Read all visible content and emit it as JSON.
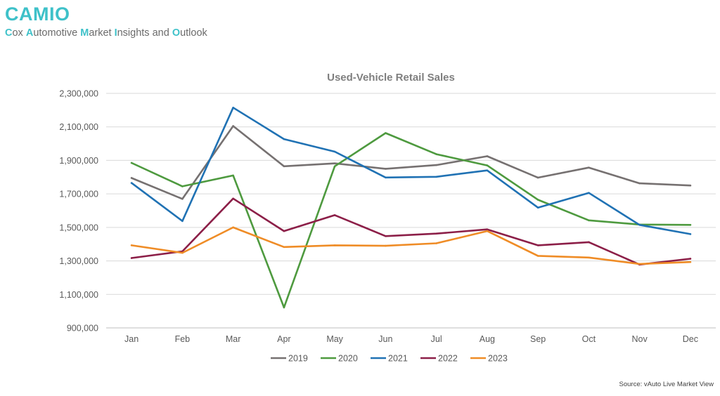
{
  "brand": {
    "title": "CAMIO",
    "subtitle_parts": [
      {
        "text": "C",
        "highlight": true
      },
      {
        "text": "ox ",
        "highlight": false
      },
      {
        "text": "A",
        "highlight": true
      },
      {
        "text": "utomotive ",
        "highlight": false
      },
      {
        "text": "M",
        "highlight": true
      },
      {
        "text": "arket ",
        "highlight": false
      },
      {
        "text": "I",
        "highlight": true
      },
      {
        "text": "nsights and ",
        "highlight": false
      },
      {
        "text": "O",
        "highlight": true
      },
      {
        "text": "utlook",
        "highlight": false
      }
    ],
    "accent_color": "#3ec1c9"
  },
  "source": "Source: vAuto Live Market View",
  "chart_data": {
    "type": "line",
    "title": "Used-Vehicle Retail Sales",
    "xlabel": "",
    "ylabel": "",
    "categories": [
      "Jan",
      "Feb",
      "Mar",
      "Apr",
      "May",
      "Jun",
      "Jul",
      "Aug",
      "Sep",
      "Oct",
      "Nov",
      "Dec"
    ],
    "ylim": [
      900000,
      2300000
    ],
    "yticks": [
      900000,
      1100000,
      1300000,
      1500000,
      1700000,
      1900000,
      2100000,
      2300000
    ],
    "ytick_labels": [
      "900,000",
      "1,100,000",
      "1,300,000",
      "1,500,000",
      "1,700,000",
      "1,900,000",
      "2,100,000",
      "2,300,000"
    ],
    "grid": true,
    "legend_position": "bottom",
    "series": [
      {
        "name": "2019",
        "color": "#767171",
        "values": [
          1795000,
          1670000,
          2105000,
          1865000,
          1882000,
          1850000,
          1872000,
          1925000,
          1797000,
          1857000,
          1763000,
          1750000
        ]
      },
      {
        "name": "2020",
        "color": "#4e9a3f",
        "values": [
          1885000,
          1745000,
          1810000,
          1022000,
          1865000,
          2063000,
          1937000,
          1870000,
          1665000,
          1542000,
          1517000,
          1515000
        ]
      },
      {
        "name": "2021",
        "color": "#2072b4",
        "values": [
          1765000,
          1538000,
          2215000,
          2027000,
          1952000,
          1798000,
          1802000,
          1840000,
          1618000,
          1706000,
          1515000,
          1460000
        ]
      },
      {
        "name": "2022",
        "color": "#8c1f48",
        "values": [
          1317000,
          1357000,
          1672000,
          1478000,
          1573000,
          1448000,
          1463000,
          1488000,
          1393000,
          1412000,
          1278000,
          1313000
        ]
      },
      {
        "name": "2023",
        "color": "#ef8c26",
        "values": [
          1393000,
          1348000,
          1500000,
          1383000,
          1393000,
          1390000,
          1405000,
          1478000,
          1330000,
          1320000,
          1282000,
          1293000
        ]
      }
    ]
  }
}
